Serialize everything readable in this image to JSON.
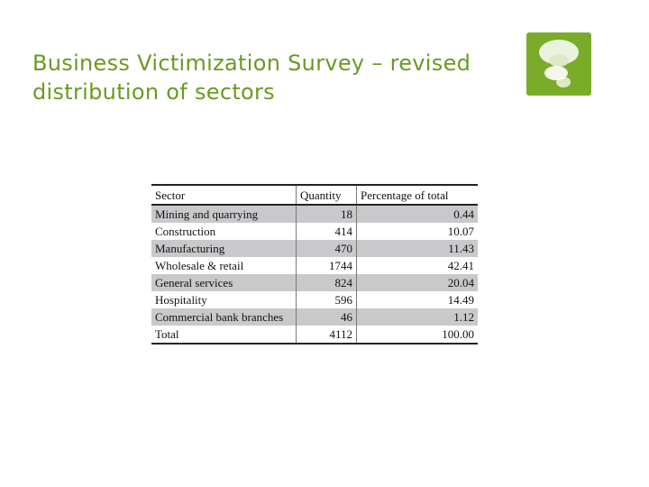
{
  "slide": {
    "title_line1": "Business Victimization Survey – revised",
    "title_line2": "distribution of sectors"
  },
  "colors": {
    "accent": "#6a9a22",
    "logo_bg": "#7aac2a",
    "row_shade": "#c9c9cc"
  },
  "logo_icon": "speech-bubbles-icon",
  "table": {
    "headers": [
      "Sector",
      "Quantity",
      "Percentage of total"
    ],
    "rows": [
      [
        "Mining and quarrying",
        "18",
        "0.44"
      ],
      [
        "Construction",
        "414",
        "10.07"
      ],
      [
        "Manufacturing",
        "470",
        "11.43"
      ],
      [
        "Wholesale & retail",
        "1744",
        "42.41"
      ],
      [
        "General services",
        "824",
        "20.04"
      ],
      [
        "Hospitality",
        "596",
        "14.49"
      ],
      [
        "Commercial bank branches",
        "46",
        "1.12"
      ],
      [
        "Total",
        "4112",
        "100.00"
      ]
    ]
  }
}
